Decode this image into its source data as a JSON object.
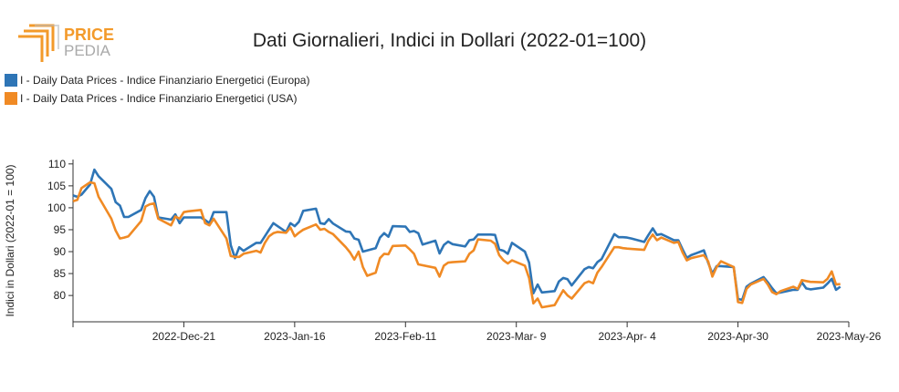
{
  "logo": {
    "line1": "PRICE",
    "line2": "PEDIA",
    "accent_color": "#f39a2a",
    "muted_color": "#aaaaaa"
  },
  "chart_data": {
    "type": "line",
    "title": "Dati Giornalieri, Indici in Dollari (2022-01=100)",
    "ylabel": "Indici in Dollari (2022-01 = 100)",
    "ylim": [
      74,
      111
    ],
    "yticks": [
      80,
      85,
      90,
      95,
      100,
      105,
      110
    ],
    "xlim": [
      "2022-11-25",
      "2023-05-26"
    ],
    "xticks": [
      {
        "label": "2022-Dec-21",
        "date": "2022-12-21"
      },
      {
        "label": "2023-Jan-16",
        "date": "2023-01-16"
      },
      {
        "label": "2023-Feb-11",
        "date": "2023-02-11"
      },
      {
        "label": "2023-Mar- 9",
        "date": "2023-03-09"
      },
      {
        "label": "2023-Apr- 4",
        "date": "2023-04-04"
      },
      {
        "label": "2023-Apr-30",
        "date": "2023-04-30"
      },
      {
        "label": "2023-May-26",
        "date": "2023-05-26"
      }
    ],
    "legend_position": "top-left",
    "grid": false,
    "series": [
      {
        "name": "I - Daily Data Prices - Indice Finanziario Energetici (Europa)",
        "color": "#2e75b6",
        "points": [
          [
            "2022-11-25",
            102.8
          ],
          [
            "2022-11-26",
            102.5
          ],
          [
            "2022-11-27",
            103.0
          ],
          [
            "2022-11-29",
            105.3
          ],
          [
            "2022-11-30",
            108.7
          ],
          [
            "2022-12-01",
            107.2
          ],
          [
            "2022-12-04",
            104.3
          ],
          [
            "2022-12-05",
            101.3
          ],
          [
            "2022-12-06",
            100.5
          ],
          [
            "2022-12-07",
            97.9
          ],
          [
            "2022-12-08",
            97.9
          ],
          [
            "2022-12-11",
            99.5
          ],
          [
            "2022-12-12",
            102.2
          ],
          [
            "2022-12-13",
            103.8
          ],
          [
            "2022-12-14",
            102.5
          ],
          [
            "2022-12-15",
            97.8
          ],
          [
            "2022-12-18",
            97.3
          ],
          [
            "2022-12-19",
            98.5
          ],
          [
            "2022-12-20",
            96.5
          ],
          [
            "2022-12-21",
            97.8
          ],
          [
            "2022-12-22",
            97.8
          ],
          [
            "2022-12-25",
            97.8
          ],
          [
            "2022-12-26",
            97.2
          ],
          [
            "2022-12-27",
            96.5
          ],
          [
            "2022-12-28",
            99.0
          ],
          [
            "2022-12-29",
            99.0
          ],
          [
            "2022-12-31",
            99.0
          ],
          [
            "2023-01-01",
            91.5
          ],
          [
            "2023-01-02",
            88.5
          ],
          [
            "2023-01-03",
            91.0
          ],
          [
            "2023-01-04",
            90.2
          ],
          [
            "2023-01-07",
            92.0
          ],
          [
            "2023-01-08",
            92.0
          ],
          [
            "2023-01-09",
            93.5
          ],
          [
            "2023-01-10",
            95.0
          ],
          [
            "2023-01-11",
            96.5
          ],
          [
            "2023-01-12",
            95.8
          ],
          [
            "2023-01-14",
            94.5
          ],
          [
            "2023-01-15",
            96.5
          ],
          [
            "2023-01-16",
            95.8
          ],
          [
            "2023-01-17",
            96.8
          ],
          [
            "2023-01-18",
            99.3
          ],
          [
            "2023-01-21",
            99.8
          ],
          [
            "2023-01-22",
            96.5
          ],
          [
            "2023-01-23",
            96.3
          ],
          [
            "2023-01-24",
            97.4
          ],
          [
            "2023-01-25",
            96.4
          ],
          [
            "2023-01-28",
            94.6
          ],
          [
            "2023-01-29",
            94.5
          ],
          [
            "2023-01-30",
            93.0
          ],
          [
            "2023-01-31",
            92.7
          ],
          [
            "2023-02-01",
            90.0
          ],
          [
            "2023-02-04",
            90.8
          ],
          [
            "2023-02-05",
            93.2
          ],
          [
            "2023-02-06",
            94.2
          ],
          [
            "2023-02-07",
            93.4
          ],
          [
            "2023-02-08",
            95.8
          ],
          [
            "2023-02-11",
            95.7
          ],
          [
            "2023-02-12",
            94.5
          ],
          [
            "2023-02-13",
            94.7
          ],
          [
            "2023-02-14",
            94.2
          ],
          [
            "2023-02-15",
            91.6
          ],
          [
            "2023-02-18",
            92.5
          ],
          [
            "2023-02-19",
            89.6
          ],
          [
            "2023-02-20",
            91.5
          ],
          [
            "2023-02-21",
            92.3
          ],
          [
            "2023-02-22",
            91.7
          ],
          [
            "2023-02-25",
            91.2
          ],
          [
            "2023-02-26",
            92.6
          ],
          [
            "2023-02-27",
            92.8
          ],
          [
            "2023-02-28",
            93.9
          ],
          [
            "2023-03-03",
            93.9
          ],
          [
            "2023-03-04",
            93.8
          ],
          [
            "2023-03-05",
            90.5
          ],
          [
            "2023-03-06",
            90.2
          ],
          [
            "2023-03-07",
            89.5
          ],
          [
            "2023-03-08",
            92.0
          ],
          [
            "2023-03-11",
            90.0
          ],
          [
            "2023-03-12",
            87.5
          ],
          [
            "2023-03-13",
            80.5
          ],
          [
            "2023-03-14",
            82.5
          ],
          [
            "2023-03-15",
            80.7
          ],
          [
            "2023-03-18",
            81.0
          ],
          [
            "2023-03-19",
            83.2
          ],
          [
            "2023-03-20",
            84.0
          ],
          [
            "2023-03-21",
            83.7
          ],
          [
            "2023-03-22",
            82.3
          ],
          [
            "2023-03-25",
            86.0
          ],
          [
            "2023-03-26",
            86.5
          ],
          [
            "2023-03-27",
            86.2
          ],
          [
            "2023-03-28",
            87.6
          ],
          [
            "2023-03-29",
            88.3
          ],
          [
            "2023-04-01",
            94.0
          ],
          [
            "2023-04-02",
            93.3
          ],
          [
            "2023-04-03",
            93.3
          ],
          [
            "2023-04-04",
            93.2
          ],
          [
            "2023-04-05",
            93.0
          ],
          [
            "2023-04-08",
            92.2
          ],
          [
            "2023-04-09",
            93.8
          ],
          [
            "2023-04-10",
            95.3
          ],
          [
            "2023-04-11",
            93.8
          ],
          [
            "2023-04-12",
            94.0
          ],
          [
            "2023-04-15",
            92.6
          ],
          [
            "2023-04-16",
            92.6
          ],
          [
            "2023-04-17",
            90.5
          ],
          [
            "2023-04-18",
            88.6
          ],
          [
            "2023-04-19",
            89.2
          ],
          [
            "2023-04-22",
            90.3
          ],
          [
            "2023-04-23",
            87.5
          ],
          [
            "2023-04-24",
            85.0
          ],
          [
            "2023-04-25",
            86.7
          ],
          [
            "2023-04-26",
            86.7
          ],
          [
            "2023-04-29",
            86.5
          ],
          [
            "2023-04-30",
            79.2
          ],
          [
            "2023-05-01",
            79.0
          ],
          [
            "2023-05-02",
            82.0
          ],
          [
            "2023-05-03",
            82.7
          ],
          [
            "2023-05-06",
            84.2
          ],
          [
            "2023-05-07",
            83.0
          ],
          [
            "2023-05-08",
            81.7
          ],
          [
            "2023-05-09",
            80.5
          ],
          [
            "2023-05-10",
            80.7
          ],
          [
            "2023-05-13",
            81.3
          ],
          [
            "2023-05-14",
            81.3
          ],
          [
            "2023-05-15",
            83.0
          ],
          [
            "2023-05-16",
            81.6
          ],
          [
            "2023-05-17",
            81.4
          ],
          [
            "2023-05-20",
            81.8
          ],
          [
            "2023-05-21",
            82.7
          ],
          [
            "2023-05-22",
            83.8
          ],
          [
            "2023-05-23",
            81.3
          ],
          [
            "2023-05-24",
            82.0
          ]
        ]
      },
      {
        "name": "I - Daily Data Prices - Indice Finanziario Energetici (USA)",
        "color": "#f08a24",
        "points": [
          [
            "2022-11-25",
            101.5
          ],
          [
            "2022-11-26",
            101.8
          ],
          [
            "2022-11-27",
            104.5
          ],
          [
            "2022-11-29",
            105.8
          ],
          [
            "2022-11-30",
            105.6
          ],
          [
            "2022-12-01",
            102.5
          ],
          [
            "2022-12-04",
            97.5
          ],
          [
            "2022-12-05",
            94.8
          ],
          [
            "2022-12-06",
            93.0
          ],
          [
            "2022-12-07",
            93.2
          ],
          [
            "2022-12-08",
            93.5
          ],
          [
            "2022-12-11",
            97.0
          ],
          [
            "2022-12-12",
            100.3
          ],
          [
            "2022-12-13",
            100.8
          ],
          [
            "2022-12-14",
            101.0
          ],
          [
            "2022-12-15",
            97.5
          ],
          [
            "2022-12-18",
            96.0
          ],
          [
            "2022-12-19",
            98.0
          ],
          [
            "2022-12-20",
            97.5
          ],
          [
            "2022-12-21",
            99.0
          ],
          [
            "2022-12-22",
            99.2
          ],
          [
            "2022-12-25",
            99.5
          ],
          [
            "2022-12-26",
            96.5
          ],
          [
            "2022-12-27",
            96.0
          ],
          [
            "2022-12-28",
            97.5
          ],
          [
            "2022-12-31",
            93.0
          ],
          [
            "2023-01-01",
            89.0
          ],
          [
            "2023-01-02",
            88.8
          ],
          [
            "2023-01-03",
            88.8
          ],
          [
            "2023-01-04",
            89.5
          ],
          [
            "2023-01-07",
            90.2
          ],
          [
            "2023-01-08",
            89.8
          ],
          [
            "2023-01-09",
            92.0
          ],
          [
            "2023-01-10",
            93.5
          ],
          [
            "2023-01-11",
            94.2
          ],
          [
            "2023-01-12",
            94.5
          ],
          [
            "2023-01-14",
            94.3
          ],
          [
            "2023-01-15",
            95.5
          ],
          [
            "2023-01-16",
            93.5
          ],
          [
            "2023-01-17",
            94.3
          ],
          [
            "2023-01-18",
            95.0
          ],
          [
            "2023-01-21",
            96.2
          ],
          [
            "2023-01-22",
            95.0
          ],
          [
            "2023-01-23",
            95.2
          ],
          [
            "2023-01-24",
            94.5
          ],
          [
            "2023-01-25",
            94.0
          ],
          [
            "2023-01-28",
            91.0
          ],
          [
            "2023-01-29",
            89.8
          ],
          [
            "2023-01-30",
            88.2
          ],
          [
            "2023-01-31",
            90.0
          ],
          [
            "2023-02-01",
            86.5
          ],
          [
            "2023-02-02",
            84.5
          ],
          [
            "2023-02-04",
            85.2
          ],
          [
            "2023-02-05",
            88.5
          ],
          [
            "2023-02-06",
            89.5
          ],
          [
            "2023-02-07",
            89.4
          ],
          [
            "2023-02-08",
            91.3
          ],
          [
            "2023-02-11",
            91.4
          ],
          [
            "2023-02-12",
            90.5
          ],
          [
            "2023-02-13",
            89.5
          ],
          [
            "2023-02-14",
            87.1
          ],
          [
            "2023-02-18",
            86.3
          ],
          [
            "2023-02-19",
            84.3
          ],
          [
            "2023-02-20",
            86.8
          ],
          [
            "2023-02-21",
            87.5
          ],
          [
            "2023-02-22",
            87.6
          ],
          [
            "2023-02-25",
            87.8
          ],
          [
            "2023-02-26",
            89.5
          ],
          [
            "2023-02-27",
            90.3
          ],
          [
            "2023-02-28",
            92.8
          ],
          [
            "2023-03-03",
            92.5
          ],
          [
            "2023-03-04",
            91.8
          ],
          [
            "2023-03-05",
            89.2
          ],
          [
            "2023-03-06",
            88.0
          ],
          [
            "2023-03-07",
            87.3
          ],
          [
            "2023-03-08",
            88.0
          ],
          [
            "2023-03-11",
            86.8
          ],
          [
            "2023-03-12",
            84.0
          ],
          [
            "2023-03-13",
            78.2
          ],
          [
            "2023-03-14",
            79.3
          ],
          [
            "2023-03-15",
            77.3
          ],
          [
            "2023-03-18",
            77.8
          ],
          [
            "2023-03-19",
            79.5
          ],
          [
            "2023-03-20",
            81.2
          ],
          [
            "2023-03-21",
            80.0
          ],
          [
            "2023-03-22",
            79.3
          ],
          [
            "2023-03-25",
            82.8
          ],
          [
            "2023-03-26",
            83.2
          ],
          [
            "2023-03-27",
            82.8
          ],
          [
            "2023-03-28",
            85.2
          ],
          [
            "2023-03-29",
            86.5
          ],
          [
            "2023-04-01",
            91.0
          ],
          [
            "2023-04-02",
            91.0
          ],
          [
            "2023-04-03",
            90.8
          ],
          [
            "2023-04-04",
            90.7
          ],
          [
            "2023-04-05",
            90.6
          ],
          [
            "2023-04-08",
            90.4
          ],
          [
            "2023-04-09",
            92.5
          ],
          [
            "2023-04-10",
            93.9
          ],
          [
            "2023-04-11",
            92.6
          ],
          [
            "2023-04-12",
            93.2
          ],
          [
            "2023-04-15",
            92.0
          ],
          [
            "2023-04-16",
            92.2
          ],
          [
            "2023-04-17",
            89.8
          ],
          [
            "2023-04-18",
            88.0
          ],
          [
            "2023-04-19",
            88.5
          ],
          [
            "2023-04-22",
            89.2
          ],
          [
            "2023-04-23",
            87.8
          ],
          [
            "2023-04-24",
            84.3
          ],
          [
            "2023-04-25",
            86.5
          ],
          [
            "2023-04-26",
            87.8
          ],
          [
            "2023-04-29",
            86.5
          ],
          [
            "2023-04-30",
            78.5
          ],
          [
            "2023-05-01",
            78.3
          ],
          [
            "2023-05-02",
            81.5
          ],
          [
            "2023-05-03",
            82.5
          ],
          [
            "2023-05-06",
            83.8
          ],
          [
            "2023-05-07",
            82.5
          ],
          [
            "2023-05-08",
            80.8
          ],
          [
            "2023-05-09",
            80.3
          ],
          [
            "2023-05-10",
            81.0
          ],
          [
            "2023-05-13",
            82.0
          ],
          [
            "2023-05-14",
            81.5
          ],
          [
            "2023-05-15",
            83.5
          ],
          [
            "2023-05-16",
            83.3
          ],
          [
            "2023-05-17",
            83.1
          ],
          [
            "2023-05-20",
            83.0
          ],
          [
            "2023-05-21",
            83.8
          ],
          [
            "2023-05-22",
            85.5
          ],
          [
            "2023-05-23",
            82.5
          ],
          [
            "2023-05-24",
            82.6
          ]
        ]
      }
    ]
  }
}
